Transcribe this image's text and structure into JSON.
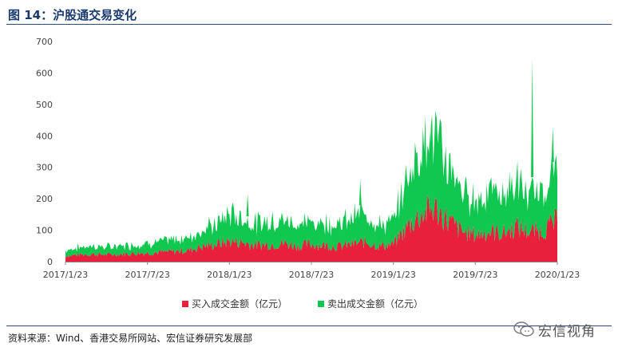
{
  "header": {
    "title": "图 14：沪股通交易变化"
  },
  "footer": {
    "source": "资料来源：Wind、香港交易所网站、宏信证券研究发展部"
  },
  "watermark": {
    "text": "宏信视角"
  },
  "colors": {
    "buy": "#e8203c",
    "sell": "#10c850",
    "axis": "#888888",
    "rule": "#2a4a7a"
  },
  "chart_data": {
    "type": "area",
    "stacked": true,
    "ylim": [
      0,
      700
    ],
    "yticks": [
      "0",
      "100",
      "200",
      "300",
      "400",
      "500",
      "600",
      "700"
    ],
    "xticks": [
      "2017/1/23",
      "2017/7/23",
      "2018/1/23",
      "2018/7/23",
      "2019/1/23",
      "2019/7/23",
      "2020/1/23"
    ],
    "xlim": [
      "2017/1/23",
      "2020/1/23"
    ],
    "legend_position": "bottom",
    "x": [
      "2017/1",
      "2017/2",
      "2017/3",
      "2017/4",
      "2017/5",
      "2017/6",
      "2017/7",
      "2017/8",
      "2017/9",
      "2017/10",
      "2017/11",
      "2017/12",
      "2018/1",
      "2018/2",
      "2018/3",
      "2018/4",
      "2018/5",
      "2018/6",
      "2018/7",
      "2018/8",
      "2018/9",
      "2018/10",
      "2018/11",
      "2018/12",
      "2019/1",
      "2019/2",
      "2019/3",
      "2019/4",
      "2019/5",
      "2019/6",
      "2019/7",
      "2019/8",
      "2019/9",
      "2019/10",
      "2019/11",
      "2019/12",
      "2020/1"
    ],
    "series": [
      {
        "name": "买入成交金额（亿元）",
        "values": [
          18,
          22,
          24,
          22,
          24,
          26,
          28,
          30,
          32,
          36,
          48,
          55,
          65,
          60,
          52,
          55,
          58,
          50,
          55,
          52,
          48,
          55,
          62,
          50,
          55,
          110,
          150,
          170,
          130,
          95,
          85,
          95,
          90,
          110,
          95,
          100,
          130
        ]
      },
      {
        "name": "卖出成交金额（亿元）",
        "values": [
          15,
          20,
          22,
          20,
          22,
          24,
          26,
          28,
          32,
          35,
          45,
          52,
          75,
          65,
          58,
          65,
          62,
          60,
          58,
          62,
          60,
          72,
          80,
          55,
          60,
          130,
          190,
          200,
          150,
          110,
          95,
          110,
          105,
          120,
          95,
          110,
          140
        ]
      }
    ]
  }
}
